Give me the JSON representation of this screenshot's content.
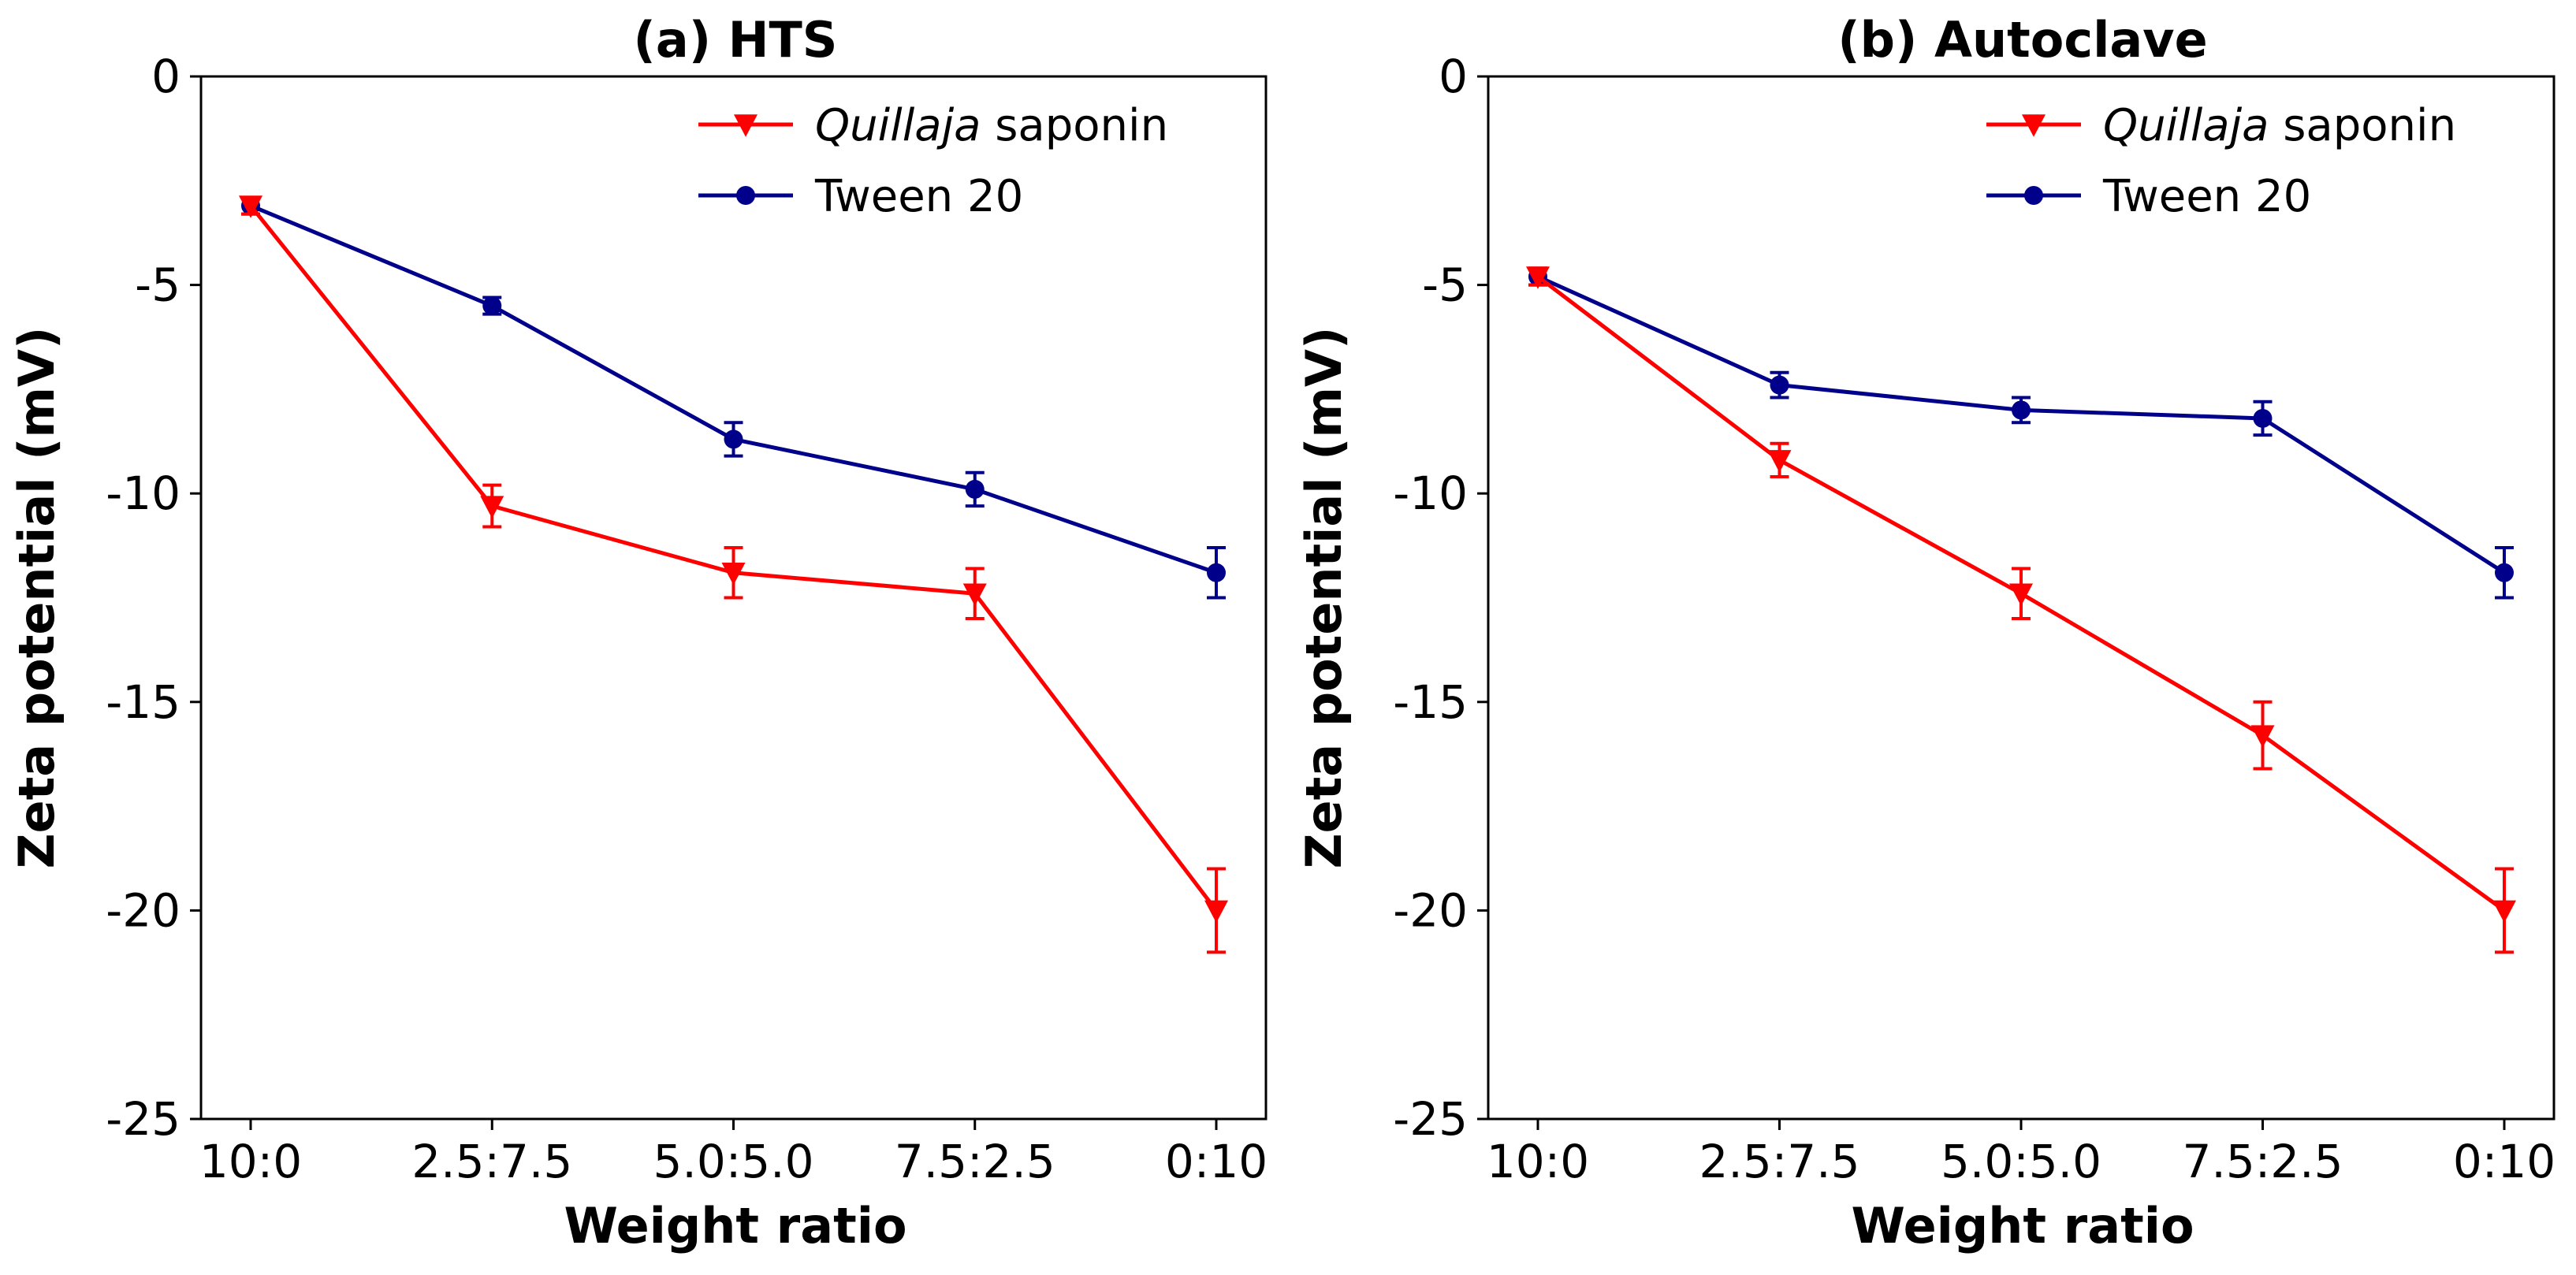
{
  "chart_data": [
    {
      "type": "line",
      "title": "(a) HTS",
      "xlabel": "Weight ratio",
      "ylabel": "Zeta potential (mV)",
      "categories": [
        "10:0",
        "2.5:7.5",
        "5.0:5.0",
        "7.5:2.5",
        "0:10"
      ],
      "ylim": [
        -25,
        0
      ],
      "yticks": [
        0,
        -5,
        -10,
        -15,
        -20,
        -25
      ],
      "ytick_labels": [
        "0",
        "-5",
        "-10",
        "-15",
        "-20",
        "-25"
      ],
      "legend_position": "top-right",
      "series": [
        {
          "name": "Quillaja saponin",
          "name_italic": "Quillaja",
          "name_rest": " saponin",
          "color": "#ff0000",
          "marker": "triangle-down",
          "values": [
            -3.1,
            -10.3,
            -11.9,
            -12.4,
            -20.0
          ],
          "errors": [
            0.2,
            0.5,
            0.6,
            0.6,
            1.0
          ]
        },
        {
          "name": "Tween 20",
          "color": "#00008b",
          "marker": "circle",
          "values": [
            -3.1,
            -5.5,
            -8.7,
            -9.9,
            -11.9
          ],
          "errors": [
            0.2,
            0.2,
            0.4,
            0.4,
            0.6
          ]
        }
      ]
    },
    {
      "type": "line",
      "title": "(b) Autoclave",
      "xlabel": "Weight ratio",
      "ylabel": "Zeta potential (mV)",
      "categories": [
        "10:0",
        "2.5:7.5",
        "5.0:5.0",
        "7.5:2.5",
        "0:10"
      ],
      "ylim": [
        -25,
        0
      ],
      "yticks": [
        0,
        -5,
        -10,
        -15,
        -20,
        -25
      ],
      "ytick_labels": [
        "0",
        "-5",
        "-10",
        "-15",
        "-20",
        "-25"
      ],
      "legend_position": "top-right",
      "series": [
        {
          "name": "Quillaja saponin",
          "name_italic": "Quillaja",
          "name_rest": " saponin",
          "color": "#ff0000",
          "marker": "triangle-down",
          "values": [
            -4.8,
            -9.2,
            -12.4,
            -15.8,
            -20.0
          ],
          "errors": [
            0.2,
            0.4,
            0.6,
            0.8,
            1.0
          ]
        },
        {
          "name": "Tween 20",
          "color": "#00008b",
          "marker": "circle",
          "values": [
            -4.8,
            -7.4,
            -8.0,
            -8.2,
            -11.9
          ],
          "errors": [
            0.2,
            0.3,
            0.3,
            0.4,
            0.6
          ]
        }
      ]
    }
  ]
}
